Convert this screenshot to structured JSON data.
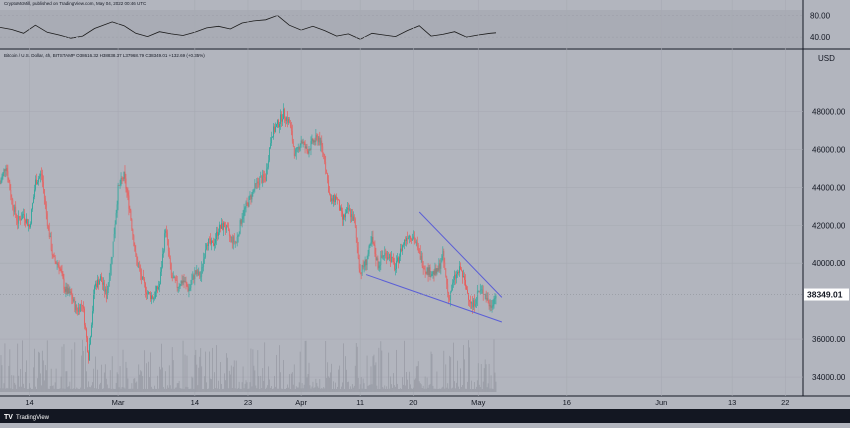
{
  "header": {
    "publisher_line": "CryptoMcMill, published on TradingView.com, May 04, 2022 00:46 UTC",
    "symbol_line": "Bitcoin / U.S. Dollar, 4h, BITSTAMP O38616.32 H38838.37 L37968.79 C38349.01 +132.69 (+0.35%)"
  },
  "footer": {
    "logo_text": "TradingView"
  },
  "colors": {
    "background": "#b2b5be",
    "up_candle": "#26a69a",
    "down_candle": "#ef5350",
    "trendline": "#5b5fd6",
    "rsi_line": "#1a1a1a",
    "volume": "#8f939c",
    "axis_text": "#131722",
    "price_label_bg": "#ffffff"
  },
  "chart_data": [
    {
      "type": "line",
      "name": "rsi",
      "ylim": [
        20,
        90
      ],
      "y_ticks": [
        "80.00",
        "40.00"
      ],
      "x_range": [
        "2022-02-09",
        "2022-05-04"
      ],
      "points": [
        [
          "2022-02-09",
          58
        ],
        [
          "2022-02-11",
          54
        ],
        [
          "2022-02-13",
          47
        ],
        [
          "2022-02-15",
          62
        ],
        [
          "2022-02-17",
          49
        ],
        [
          "2022-02-19",
          44
        ],
        [
          "2022-02-21",
          38
        ],
        [
          "2022-02-23",
          42
        ],
        [
          "2022-02-25",
          56
        ],
        [
          "2022-02-28",
          68
        ],
        [
          "2022-03-02",
          61
        ],
        [
          "2022-03-04",
          47
        ],
        [
          "2022-03-06",
          41
        ],
        [
          "2022-03-08",
          50
        ],
        [
          "2022-03-10",
          46
        ],
        [
          "2022-03-12",
          43
        ],
        [
          "2022-03-14",
          49
        ],
        [
          "2022-03-16",
          57
        ],
        [
          "2022-03-18",
          60
        ],
        [
          "2022-03-20",
          55
        ],
        [
          "2022-03-22",
          66
        ],
        [
          "2022-03-24",
          70
        ],
        [
          "2022-03-26",
          72
        ],
        [
          "2022-03-28",
          80
        ],
        [
          "2022-03-30",
          62
        ],
        [
          "2022-04-01",
          53
        ],
        [
          "2022-04-03",
          60
        ],
        [
          "2022-04-05",
          52
        ],
        [
          "2022-04-07",
          42
        ],
        [
          "2022-04-09",
          46
        ],
        [
          "2022-04-11",
          36
        ],
        [
          "2022-04-13",
          47
        ],
        [
          "2022-04-15",
          44
        ],
        [
          "2022-04-17",
          41
        ],
        [
          "2022-04-19",
          52
        ],
        [
          "2022-04-21",
          61
        ],
        [
          "2022-04-23",
          42
        ],
        [
          "2022-04-25",
          45
        ],
        [
          "2022-04-27",
          50
        ],
        [
          "2022-04-29",
          40
        ],
        [
          "2022-05-01",
          44
        ],
        [
          "2022-05-03",
          47
        ],
        [
          "2022-05-04",
          48
        ]
      ]
    },
    {
      "type": "candlestick",
      "name": "Bitcoin / U.S. Dollar, 4h",
      "y_unit": "USD",
      "ylim": [
        33000,
        50500
      ],
      "y_ticks": [
        "48000.00",
        "46000.00",
        "44000.00",
        "42000.00",
        "40000.00",
        "36000.00",
        "34000.00"
      ],
      "x_range": [
        "2022-02-09",
        "2022-06-25"
      ],
      "x_ticks": [
        {
          "date": "2022-02-14",
          "label": "14"
        },
        {
          "date": "2022-03-01",
          "label": "Mar"
        },
        {
          "date": "2022-03-14",
          "label": "14"
        },
        {
          "date": "2022-03-23",
          "label": "23"
        },
        {
          "date": "2022-04-01",
          "label": "Apr"
        },
        {
          "date": "2022-04-11",
          "label": "11"
        },
        {
          "date": "2022-04-20",
          "label": "20"
        },
        {
          "date": "2022-05-01",
          "label": "May"
        },
        {
          "date": "2022-05-16",
          "label": "16"
        },
        {
          "date": "2022-06-01",
          "label": "Jun"
        },
        {
          "date": "2022-06-13",
          "label": "13"
        },
        {
          "date": "2022-06-22",
          "label": "22"
        }
      ],
      "last_price": 38349.01,
      "last_price_label": "38349.01",
      "close_path": [
        [
          "2022-02-09",
          44200
        ],
        [
          "2022-02-10",
          45200
        ],
        [
          "2022-02-11",
          43300
        ],
        [
          "2022-02-12",
          42200
        ],
        [
          "2022-02-13",
          42600
        ],
        [
          "2022-02-14",
          41900
        ],
        [
          "2022-02-15",
          44300
        ],
        [
          "2022-02-16",
          44700
        ],
        [
          "2022-02-17",
          42200
        ],
        [
          "2022-02-18",
          40200
        ],
        [
          "2022-02-19",
          39900
        ],
        [
          "2022-02-20",
          38600
        ],
        [
          "2022-02-21",
          38300
        ],
        [
          "2022-02-22",
          37500
        ],
        [
          "2022-02-23",
          37900
        ],
        [
          "2022-02-24",
          35100
        ],
        [
          "2022-02-25",
          38800
        ],
        [
          "2022-02-26",
          39200
        ],
        [
          "2022-02-27",
          38300
        ],
        [
          "2022-02-28",
          40500
        ],
        [
          "2022-03-01",
          43900
        ],
        [
          "2022-03-02",
          44600
        ],
        [
          "2022-03-03",
          42800
        ],
        [
          "2022-03-04",
          40300
        ],
        [
          "2022-03-05",
          39200
        ],
        [
          "2022-03-06",
          38400
        ],
        [
          "2022-03-07",
          38200
        ],
        [
          "2022-03-08",
          38900
        ],
        [
          "2022-03-09",
          41900
        ],
        [
          "2022-03-10",
          39300
        ],
        [
          "2022-03-11",
          38800
        ],
        [
          "2022-03-12",
          39100
        ],
        [
          "2022-03-13",
          38600
        ],
        [
          "2022-03-14",
          39500
        ],
        [
          "2022-03-15",
          39300
        ],
        [
          "2022-03-16",
          41200
        ],
        [
          "2022-03-17",
          40900
        ],
        [
          "2022-03-18",
          41800
        ],
        [
          "2022-03-19",
          42000
        ],
        [
          "2022-03-20",
          41300
        ],
        [
          "2022-03-21",
          41100
        ],
        [
          "2022-03-22",
          42500
        ],
        [
          "2022-03-23",
          43200
        ],
        [
          "2022-03-24",
          43900
        ],
        [
          "2022-03-25",
          44400
        ],
        [
          "2022-03-26",
          44500
        ],
        [
          "2022-03-27",
          46800
        ],
        [
          "2022-03-28",
          47300
        ],
        [
          "2022-03-29",
          47900
        ],
        [
          "2022-03-30",
          47400
        ],
        [
          "2022-03-31",
          45600
        ],
        [
          "2022-04-01",
          46500
        ],
        [
          "2022-04-02",
          45900
        ],
        [
          "2022-04-03",
          46400
        ],
        [
          "2022-04-04",
          46600
        ],
        [
          "2022-04-05",
          45500
        ],
        [
          "2022-04-06",
          43200
        ],
        [
          "2022-04-07",
          43500
        ],
        [
          "2022-04-08",
          42300
        ],
        [
          "2022-04-09",
          42800
        ],
        [
          "2022-04-10",
          42200
        ],
        [
          "2022-04-11",
          39500
        ],
        [
          "2022-04-12",
          40100
        ],
        [
          "2022-04-13",
          41200
        ],
        [
          "2022-04-14",
          39900
        ],
        [
          "2022-04-15",
          40500
        ],
        [
          "2022-04-16",
          40400
        ],
        [
          "2022-04-17",
          39700
        ],
        [
          "2022-04-18",
          40800
        ],
        [
          "2022-04-19",
          41500
        ],
        [
          "2022-04-20",
          41400
        ],
        [
          "2022-04-21",
          40500
        ],
        [
          "2022-04-22",
          39700
        ],
        [
          "2022-04-23",
          39500
        ],
        [
          "2022-04-24",
          39500
        ],
        [
          "2022-04-25",
          40400
        ],
        [
          "2022-04-26",
          38100
        ],
        [
          "2022-04-27",
          39200
        ],
        [
          "2022-04-28",
          39700
        ],
        [
          "2022-04-29",
          38600
        ],
        [
          "2022-04-30",
          37700
        ],
        [
          "2022-05-01",
          38500
        ],
        [
          "2022-05-02",
          38500
        ],
        [
          "2022-05-03",
          37700
        ],
        [
          "2022-05-04",
          38349
        ]
      ],
      "trendlines": [
        {
          "name": "upper-wedge-line",
          "from": [
            "2022-04-21",
            42700
          ],
          "to": [
            "2022-05-05",
            38200
          ]
        },
        {
          "name": "lower-wedge-line",
          "from": [
            "2022-04-12",
            39400
          ],
          "to": [
            "2022-05-05",
            36900
          ]
        }
      ],
      "volume": {
        "y_max": 100
      }
    }
  ]
}
